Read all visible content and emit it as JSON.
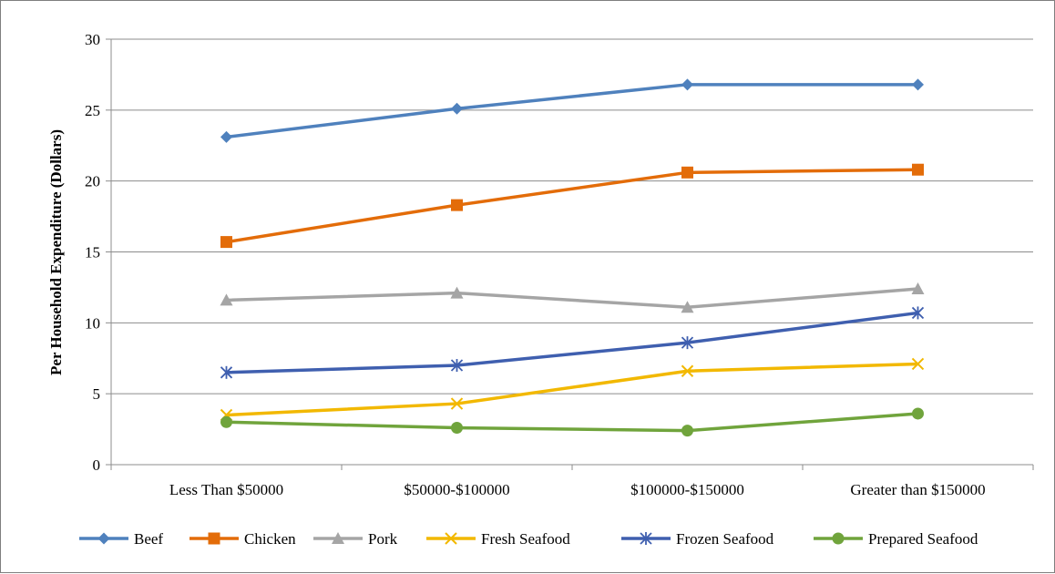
{
  "chart_data": {
    "type": "line",
    "title": "",
    "xlabel": "",
    "ylabel": "Per  Household Expenditure (Dollars)",
    "categories": [
      "Less Than $50000",
      "$50000-$100000",
      "$100000-$150000",
      "Greater than $150000"
    ],
    "ylim": [
      0,
      30
    ],
    "yticks": [
      0,
      5,
      10,
      15,
      20,
      25,
      30
    ],
    "grid": "horizontal",
    "legend_position": "bottom",
    "series": [
      {
        "name": "Beef",
        "values": [
          23.1,
          25.1,
          26.8,
          26.8
        ],
        "color": "#4F81BD",
        "marker": "diamond"
      },
      {
        "name": "Chicken",
        "values": [
          15.7,
          18.3,
          20.6,
          20.8
        ],
        "color": "#E36C09",
        "marker": "square"
      },
      {
        "name": "Pork",
        "values": [
          11.6,
          12.1,
          11.1,
          12.4
        ],
        "color": "#A5A5A5",
        "marker": "triangle"
      },
      {
        "name": "Fresh Seafood",
        "values": [
          3.5,
          4.3,
          6.6,
          7.1
        ],
        "color": "#F2B800",
        "marker": "x"
      },
      {
        "name": "Frozen Seafood",
        "values": [
          6.5,
          7.0,
          8.6,
          10.7
        ],
        "color": "#3F5FAF",
        "marker": "star"
      },
      {
        "name": "Prepared Seafood",
        "values": [
          3.0,
          2.6,
          2.4,
          3.6
        ],
        "color": "#70A43C",
        "marker": "circle"
      }
    ]
  }
}
